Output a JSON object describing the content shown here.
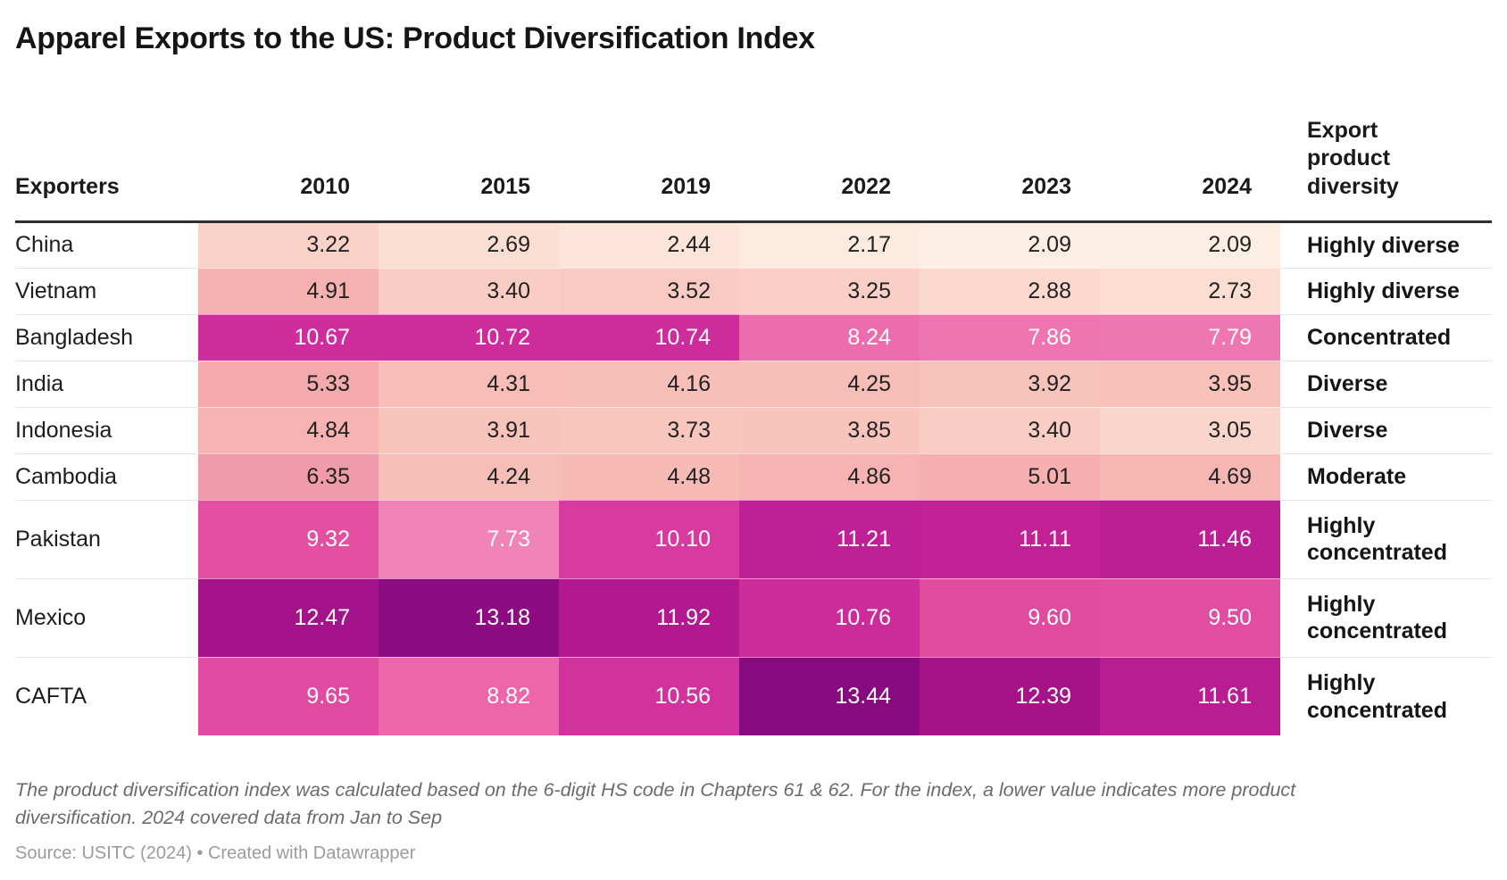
{
  "title": "Apparel Exports to the US: Product Diversification Index",
  "footnote": "The product diversification index was calculated based on the 6-digit HS code in Chapters 61 & 62. For the index, a lower value indicates more product diversification. 2024 covered data from Jan to Sep",
  "source": "Source: USITC (2024) • Created with Datawrapper",
  "chart_data": {
    "type": "heatmap",
    "title": "Apparel Exports to the US: Product Diversification Index",
    "columns": [
      "Exporters",
      "2010",
      "2015",
      "2019",
      "2022",
      "2023",
      "2024",
      "Export product diversity"
    ],
    "years": [
      "2010",
      "2015",
      "2019",
      "2022",
      "2023",
      "2024"
    ],
    "rows": [
      {
        "exporter": "China",
        "values": [
          3.22,
          2.69,
          2.44,
          2.17,
          2.09,
          2.09
        ],
        "colors": [
          "#fad1c7",
          "#fbded2",
          "#fce4d8",
          "#fdebe0",
          "#fdeee4",
          "#fdeee4"
        ],
        "diversity": "Highly diverse"
      },
      {
        "exporter": "Vietnam",
        "values": [
          4.91,
          3.4,
          3.52,
          3.25,
          2.88,
          2.73
        ],
        "colors": [
          "#f6b2b0",
          "#f9cdc3",
          "#f9cac1",
          "#fad0c6",
          "#fbd9ce",
          "#fbddd1"
        ],
        "diversity": "Highly diverse"
      },
      {
        "exporter": "Bangladesh",
        "values": [
          10.67,
          10.72,
          10.74,
          8.24,
          7.86,
          7.79
        ],
        "colors": [
          "#cf2d9d",
          "#ce2c9c",
          "#ce2c9c",
          "#ec6cae",
          "#ee75b2",
          "#ee76b2"
        ],
        "diversity": "Concentrated"
      },
      {
        "exporter": "India",
        "values": [
          5.33,
          4.31,
          4.16,
          4.25,
          3.92,
          3.95
        ],
        "colors": [
          "#f4aaac",
          "#f7bdb6",
          "#f8bfb8",
          "#f7beb7",
          "#f8c3bb",
          "#f8c2bb"
        ],
        "diversity": "Diverse"
      },
      {
        "exporter": "Indonesia",
        "values": [
          4.84,
          3.91,
          3.73,
          3.85,
          3.4,
          3.05
        ],
        "colors": [
          "#f6b3b1",
          "#f8c3bb",
          "#f9c6be",
          "#f8c4bc",
          "#f9cdc3",
          "#fad5cb"
        ],
        "diversity": "Diverse"
      },
      {
        "exporter": "Cambodia",
        "values": [
          6.35,
          4.24,
          4.48,
          4.86,
          5.01,
          4.69
        ],
        "colors": [
          "#f19aab",
          "#f7beb7",
          "#f7bab5",
          "#f6b3b1",
          "#f5b0af",
          "#f6b6b2"
        ],
        "diversity": "Moderate"
      },
      {
        "exporter": "Pakistan",
        "values": [
          9.32,
          7.73,
          10.1,
          11.21,
          11.11,
          11.46
        ],
        "colors": [
          "#e350a2",
          "#f084b6",
          "#d93aa0",
          "#c02095",
          "#c22196",
          "#bc1e94"
        ],
        "diversity": "Highly concentrated"
      },
      {
        "exporter": "Mexico",
        "values": [
          12.47,
          13.18,
          11.92,
          10.76,
          9.6,
          9.5
        ],
        "colors": [
          "#a41389",
          "#8e0c82",
          "#b2188f",
          "#cd2b9b",
          "#e04ba0",
          "#e14da1"
        ],
        "diversity": "Highly concentrated"
      },
      {
        "exporter": "CAFTA",
        "values": [
          9.65,
          8.82,
          10.56,
          13.44,
          12.39,
          11.61
        ],
        "colors": [
          "#e04aa0",
          "#ed66ab",
          "#d2329e",
          "#870b7e",
          "#a51389",
          "#b91d92"
        ],
        "diversity": "Highly concentrated"
      }
    ],
    "color_scale": {
      "min_value": 2.09,
      "max_value": 13.44,
      "low_color": "#fdeee4",
      "high_color": "#870b7e",
      "white_text_threshold": 7,
      "dark_text_color": "#222222",
      "light_text_color": "#ffffff"
    },
    "layout_hints": {
      "legend": "none",
      "grid": "off",
      "value_format": "2-decimals",
      "tall_row_diversity": "Highly concentrated"
    }
  }
}
